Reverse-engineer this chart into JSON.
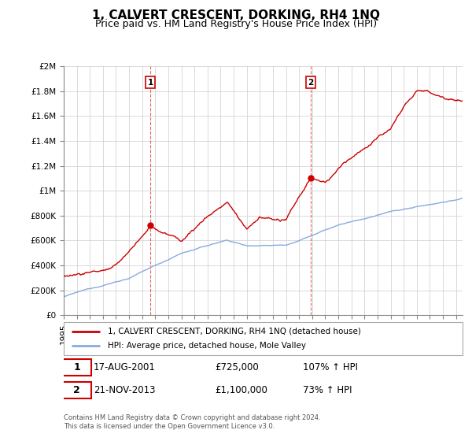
{
  "title": "1, CALVERT CRESCENT, DORKING, RH4 1NQ",
  "subtitle": "Price paid vs. HM Land Registry's House Price Index (HPI)",
  "legend_line1": "1, CALVERT CRESCENT, DORKING, RH4 1NQ (detached house)",
  "legend_line2": "HPI: Average price, detached house, Mole Valley",
  "sale1_label": "1",
  "sale1_date": "17-AUG-2001",
  "sale1_price": "£725,000",
  "sale1_hpi": "107% ↑ HPI",
  "sale2_label": "2",
  "sale2_date": "21-NOV-2013",
  "sale2_price": "£1,100,000",
  "sale2_hpi": "73% ↑ HPI",
  "footer": "Contains HM Land Registry data © Crown copyright and database right 2024.\nThis data is licensed under the Open Government Licence v3.0.",
  "line1_color": "#cc0000",
  "line2_color": "#88aadd",
  "sale1_x": 2001.63,
  "sale1_y": 725000,
  "sale2_x": 2013.9,
  "sale2_y": 1100000,
  "ylim": [
    0,
    2000000
  ],
  "xlim_start": 1995.0,
  "xlim_end": 2025.5,
  "yticks": [
    0,
    200000,
    400000,
    600000,
    800000,
    1000000,
    1200000,
    1400000,
    1600000,
    1800000,
    2000000
  ],
  "ylabels": [
    "£0",
    "£200K",
    "£400K",
    "£600K",
    "£800K",
    "£1M",
    "£1.2M",
    "£1.4M",
    "£1.6M",
    "£1.8M",
    "£2M"
  ],
  "grid_color": "#cccccc",
  "title_fontsize": 11,
  "subtitle_fontsize": 9,
  "tick_fontsize": 7.5
}
